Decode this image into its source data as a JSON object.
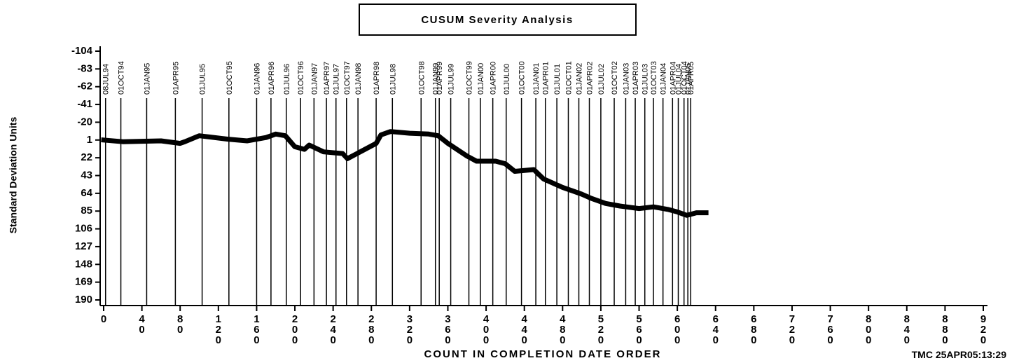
{
  "chart_data": {
    "type": "line",
    "title": "CUSUM Severity Analysis",
    "y_label": "Standard Deviation Units",
    "x_label": "COUNT IN COMPLETION DATE ORDER",
    "footnote": "TMC 25APR05:13:29",
    "ylim": [
      -104,
      190
    ],
    "y_reversed": true,
    "yticks": [
      -104,
      -83,
      -62,
      -41,
      -20,
      1,
      22,
      43,
      64,
      85,
      106,
      127,
      148,
      169,
      190
    ],
    "xlim": [
      0,
      920
    ],
    "xticks": [
      0,
      40,
      80,
      120,
      160,
      200,
      240,
      280,
      320,
      360,
      400,
      440,
      480,
      520,
      560,
      600,
      640,
      680,
      720,
      760,
      800,
      840,
      880,
      920
    ],
    "reference_lines": {
      "labels": [
        "08JUL94",
        "01OCT94",
        "01JAN95",
        "01APR95",
        "01JUL95",
        "01OCT95",
        "01JAN96",
        "01APR96",
        "01JUL96",
        "01OCT96",
        "01JAN97",
        "01APR97",
        "01JUL97",
        "01OCT97",
        "01JAN98",
        "01APR98",
        "01JUL98",
        "01OCT98",
        "01JAN99",
        "01APR99",
        "01JUL99",
        "01OCT99",
        "01JAN00",
        "01APR00",
        "01JUL00",
        "01OCT00",
        "01JAN01",
        "01APR01",
        "01JUL01",
        "01OCT01",
        "01JAN02",
        "01APR02",
        "01JUL02",
        "01OCT02",
        "01JAN03",
        "01APR03",
        "01JUL03",
        "01OCT03",
        "01JAN04",
        "01APR04",
        "01JUL04",
        "01OCT04",
        "01JAN05",
        "01APR05"
      ],
      "x": [
        2,
        18,
        45,
        75,
        103,
        131,
        160,
        175,
        191,
        206,
        220,
        233,
        243,
        254,
        266,
        285,
        302,
        332,
        347,
        351,
        363,
        382,
        394,
        407,
        421,
        437,
        452,
        462,
        474,
        486,
        497,
        508,
        520,
        534,
        546,
        556,
        566,
        575,
        585,
        595,
        601,
        607,
        611,
        614
      ]
    },
    "series": [
      {
        "color": "#000000",
        "x": [
          0,
          20,
          60,
          80,
          85,
          100,
          130,
          150,
          170,
          180,
          190,
          200,
          210,
          215,
          230,
          250,
          255,
          270,
          285,
          290,
          300,
          320,
          340,
          350,
          360,
          380,
          390,
          410,
          420,
          430,
          450,
          460,
          480,
          490,
          500,
          510,
          525,
          540,
          560,
          575,
          590,
          600,
          610,
          620,
          630
        ],
        "values": [
          1,
          3,
          2,
          5,
          3,
          -4,
          0,
          2,
          -2,
          -6,
          -4,
          9,
          12,
          7,
          15,
          17,
          23,
          14,
          5,
          -5,
          -9,
          -7,
          -6,
          -4,
          5,
          20,
          26,
          26,
          29,
          38,
          36,
          47,
          57,
          61,
          65,
          70,
          76,
          79,
          82,
          80,
          83,
          86,
          90,
          87,
          87
        ]
      }
    ]
  }
}
